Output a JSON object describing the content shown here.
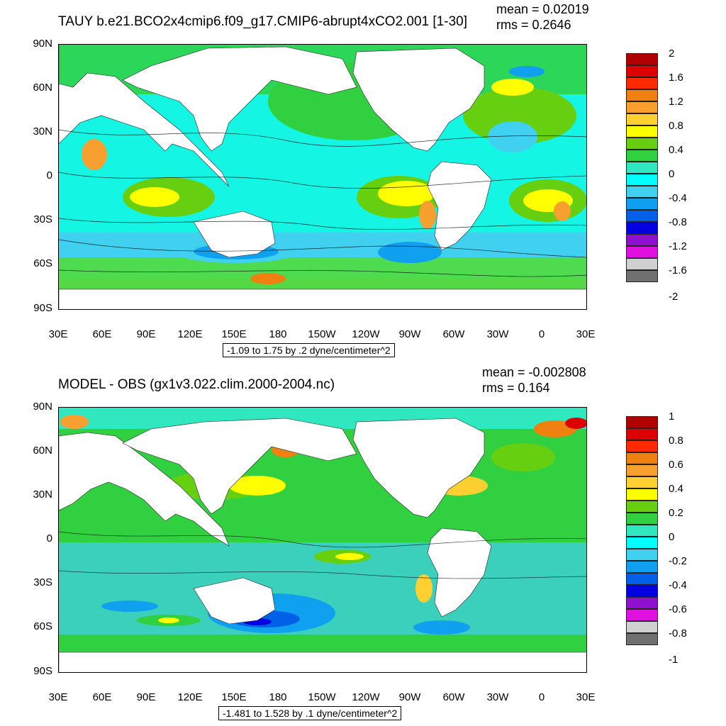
{
  "top": {
    "title": "TAUY b.e21.BCO2x4cmip6.f09_g17.CMIP6-abrupt4xCO2.001 [1-30]",
    "mean": "mean = 0.02019",
    "rms": "rms = 0.2646",
    "caption": "-1.09 to 1.75 by .2 dyne/centimeter^2",
    "colorbar_labels": [
      "2",
      "1.6",
      "1.2",
      "0.8",
      "0.4",
      "0",
      "-0.4",
      "-0.8",
      "-1.2",
      "-1.6",
      "-2"
    ]
  },
  "bottom": {
    "title": "MODEL - OBS (gx1v3.022.clim.2000-2004.nc)",
    "mean": "mean = -0.002808",
    "rms": "rms = 0.164",
    "caption": "-1.481 to 1.528 by .1 dyne/centimeter^2",
    "colorbar_labels": [
      "1",
      "0.8",
      "0.6",
      "0.4",
      "0.2",
      "0",
      "-0.2",
      "-0.4",
      "-0.6",
      "-0.8",
      "-1"
    ]
  },
  "lat_ticks": [
    "90N",
    "60N",
    "30N",
    "0",
    "30S",
    "60S",
    "90S"
  ],
  "lon_ticks": [
    "30E",
    "60E",
    "90E",
    "120E",
    "150E",
    "180",
    "150W",
    "120W",
    "90W",
    "60W",
    "30W",
    "0",
    "30E"
  ],
  "colorbar_colors": [
    "#b00000",
    "#dd0000",
    "#ff2a00",
    "#f08010",
    "#f7a030",
    "#ffd030",
    "#ffff00",
    "#66d010",
    "#30d040",
    "#30e8c0",
    "#00ffff",
    "#40d0f0",
    "#10a0f0",
    "#0060e8",
    "#0000e0",
    "#9010d0",
    "#e010e0",
    "#d0d0d0",
    "#707070"
  ],
  "land_color": "#ffffff"
}
